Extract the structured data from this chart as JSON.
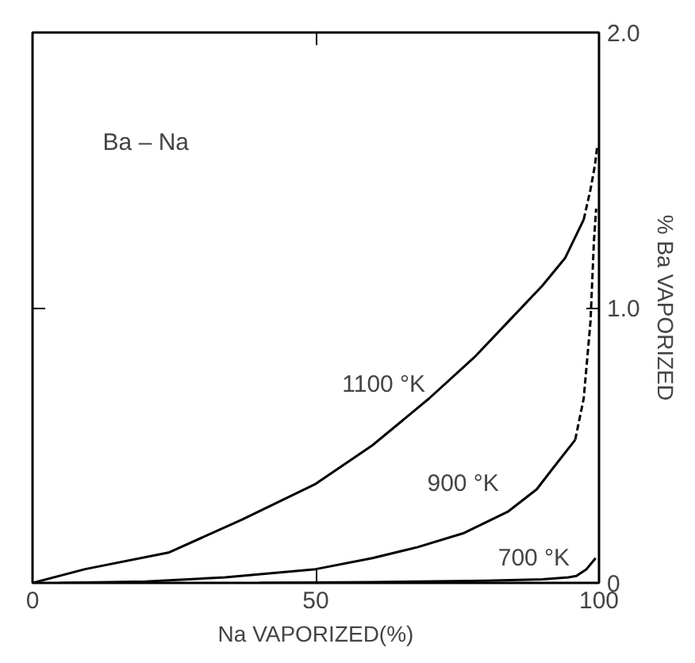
{
  "chart_data": {
    "type": "line",
    "xlabel": "Na VAPORIZED(%)",
    "ylabel": "% Ba VAPORIZED",
    "xlim": [
      0,
      100
    ],
    "ylim": [
      0,
      2.0
    ],
    "xticks": [
      0,
      50,
      100
    ],
    "yticks": [
      0,
      {
        "value": 1.0,
        "label": "1.0"
      },
      {
        "value": 2.0,
        "label": "2.0"
      }
    ],
    "grid": false,
    "marker": "none",
    "series": [
      {
        "color": "#000000",
        "line_style": "solid",
        "x": [
          0,
          9.3,
          24,
          37,
          50,
          60,
          70,
          78,
          84,
          90,
          94,
          97.3
        ],
        "values": [
          0,
          0.05,
          0.11,
          0.23,
          0.36,
          0.5,
          0.67,
          0.82,
          0.95,
          1.08,
          1.18,
          1.32
        ]
      },
      {
        "color": "#000000",
        "line_style": "dashed",
        "x": [
          97.3,
          98.5,
          99.3,
          99.7
        ],
        "values": [
          1.32,
          1.43,
          1.52,
          1.59
        ]
      },
      {
        "color": "#000000",
        "line_style": "solid",
        "x": [
          5,
          20,
          34,
          50,
          60,
          68,
          76,
          84,
          89,
          92,
          95.8
        ],
        "values": [
          0,
          0.005,
          0.02,
          0.05,
          0.09,
          0.13,
          0.18,
          0.26,
          0.34,
          0.42,
          0.52
        ]
      },
      {
        "color": "#000000",
        "line_style": "dashed",
        "x": [
          95.8,
          97.3,
          98.5,
          99.1,
          99.5
        ],
        "values": [
          0.52,
          0.67,
          0.95,
          1.24,
          1.36
        ]
      },
      {
        "color": "#000000",
        "line_style": "solid",
        "x": [
          40,
          60,
          80,
          90,
          94.6,
          96,
          97.8,
          99.4
        ],
        "values": [
          0,
          0.003,
          0.008,
          0.013,
          0.02,
          0.025,
          0.05,
          0.09
        ]
      }
    ],
    "annotations": [
      "Ba – Na",
      "1100 °K",
      "900 °K",
      "700 °K"
    ]
  }
}
